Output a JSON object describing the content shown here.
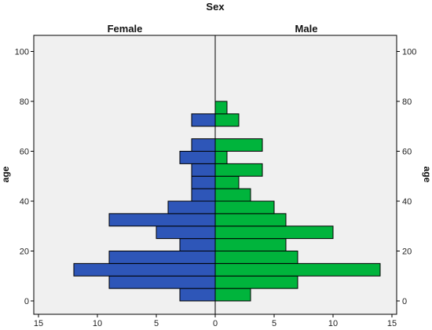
{
  "chart_data": {
    "type": "bar",
    "orientation": "horizontal",
    "title": "Sex",
    "panels": [
      "Female",
      "Male"
    ],
    "ylabel": "age",
    "ylim": [
      -5,
      105
    ],
    "yticks": [
      0,
      20,
      40,
      60,
      80,
      100
    ],
    "xticks": [
      15,
      10,
      5,
      0,
      5,
      10,
      15
    ],
    "xlim": [
      -15.5,
      15.5
    ],
    "bin_width": 5,
    "bins": [
      0,
      5,
      10,
      15,
      20,
      25,
      30,
      35,
      40,
      45,
      50,
      55,
      60,
      65,
      70,
      75
    ],
    "series": [
      {
        "name": "Female",
        "color": "#2e56b8",
        "values": [
          3,
          9,
          12,
          9,
          3,
          5,
          9,
          4,
          2,
          2,
          2,
          3,
          2,
          0,
          2,
          0
        ]
      },
      {
        "name": "Male",
        "color": "#00b43c",
        "values": [
          3,
          7,
          14,
          7,
          6,
          10,
          6,
          5,
          3,
          2,
          4,
          1,
          4,
          0,
          2,
          1
        ]
      }
    ],
    "background": "#f0f0f0",
    "grid": false
  }
}
